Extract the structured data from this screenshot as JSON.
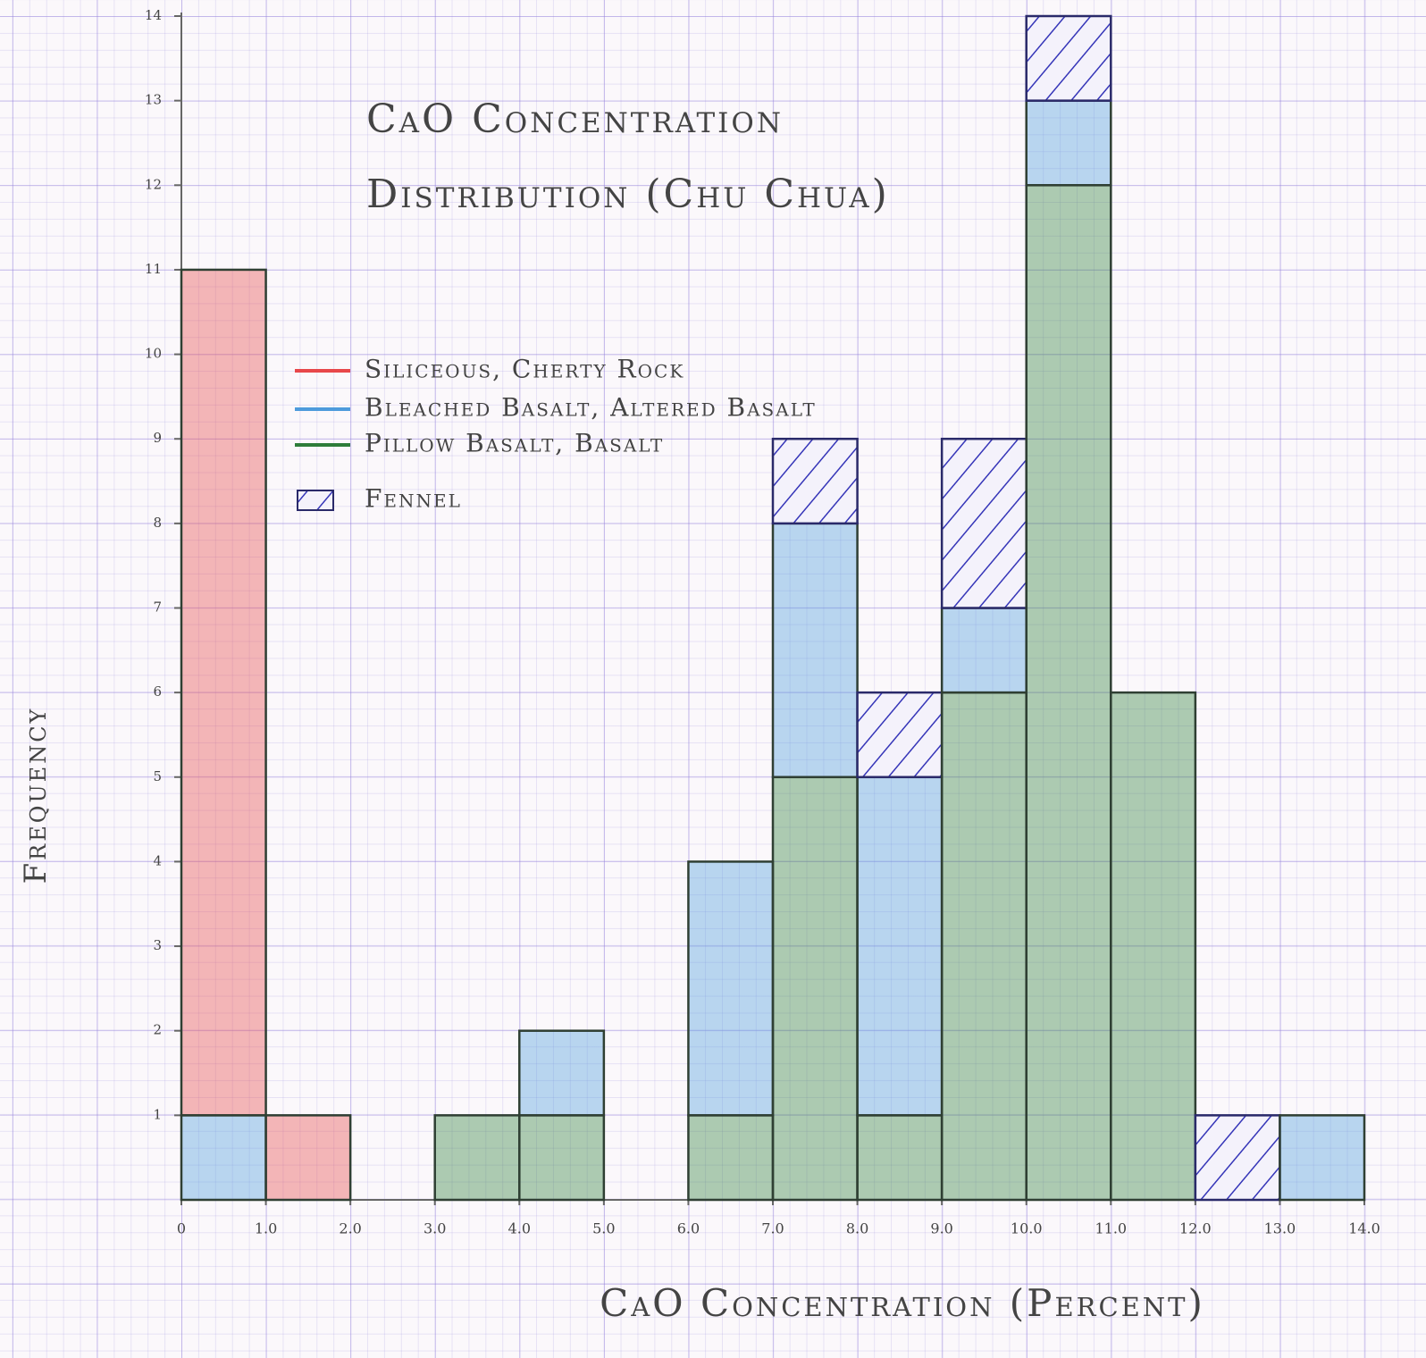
{
  "chart_data": {
    "type": "histogram",
    "title": "CaO Concentration Distribution (Chu Chua)",
    "x_label": "CaO Concentration (Percent)",
    "y_label": "Frequency",
    "bins": [
      0,
      1,
      2,
      3,
      4,
      5,
      6,
      7,
      8,
      9,
      10,
      11,
      12,
      13,
      14
    ],
    "stacked": true,
    "series": [
      {
        "name": "Pillow Basalt, Basalt",
        "color": "#2e7d3a",
        "values": [
          0,
          0,
          0,
          1,
          1,
          0,
          1,
          5,
          1,
          6,
          12,
          6,
          0,
          0
        ]
      },
      {
        "name": "Bleached Basalt, Altered Basalt",
        "color": "#4d9bdc",
        "values": [
          1,
          0,
          0,
          0,
          1,
          0,
          3,
          3,
          4,
          1,
          1,
          0,
          0,
          1
        ]
      },
      {
        "name": "Siliceous, Cherty Rock",
        "color": "#e8474a",
        "values": [
          10,
          1,
          0,
          0,
          0,
          0,
          0,
          0,
          0,
          0,
          0,
          0,
          0,
          0
        ]
      },
      {
        "name": "Fennel",
        "color": "#3535b8",
        "hatch": true,
        "values": [
          0,
          0,
          0,
          0,
          0,
          0,
          0,
          1,
          1,
          2,
          1,
          0,
          1,
          0
        ]
      }
    ],
    "legend_order": [
      2,
      1,
      0,
      3
    ],
    "xlim": [
      0,
      14
    ],
    "ylim": [
      0,
      14
    ],
    "xticks": [
      0,
      {
        "value": 1,
        "label": "1.0"
      },
      {
        "value": 2,
        "label": "2.0"
      },
      {
        "value": 3,
        "label": "3.0"
      },
      {
        "value": 4,
        "label": "4.0"
      },
      {
        "value": 5,
        "label": "5.0"
      },
      {
        "value": 6,
        "label": "6.0"
      },
      {
        "value": 7,
        "label": "7.0"
      },
      {
        "value": 8,
        "label": "8.0"
      },
      {
        "value": 9,
        "label": "9.0"
      },
      {
        "value": 10,
        "label": "10.0"
      },
      {
        "value": 11,
        "label": "11.0"
      },
      {
        "value": 12,
        "label": "12.0"
      },
      {
        "value": 13,
        "label": "13.0"
      },
      {
        "value": 14,
        "label": "14.0"
      }
    ],
    "yticks": [
      1,
      2,
      3,
      4,
      5,
      6,
      7,
      8,
      9,
      10,
      11,
      12,
      13,
      14
    ]
  }
}
